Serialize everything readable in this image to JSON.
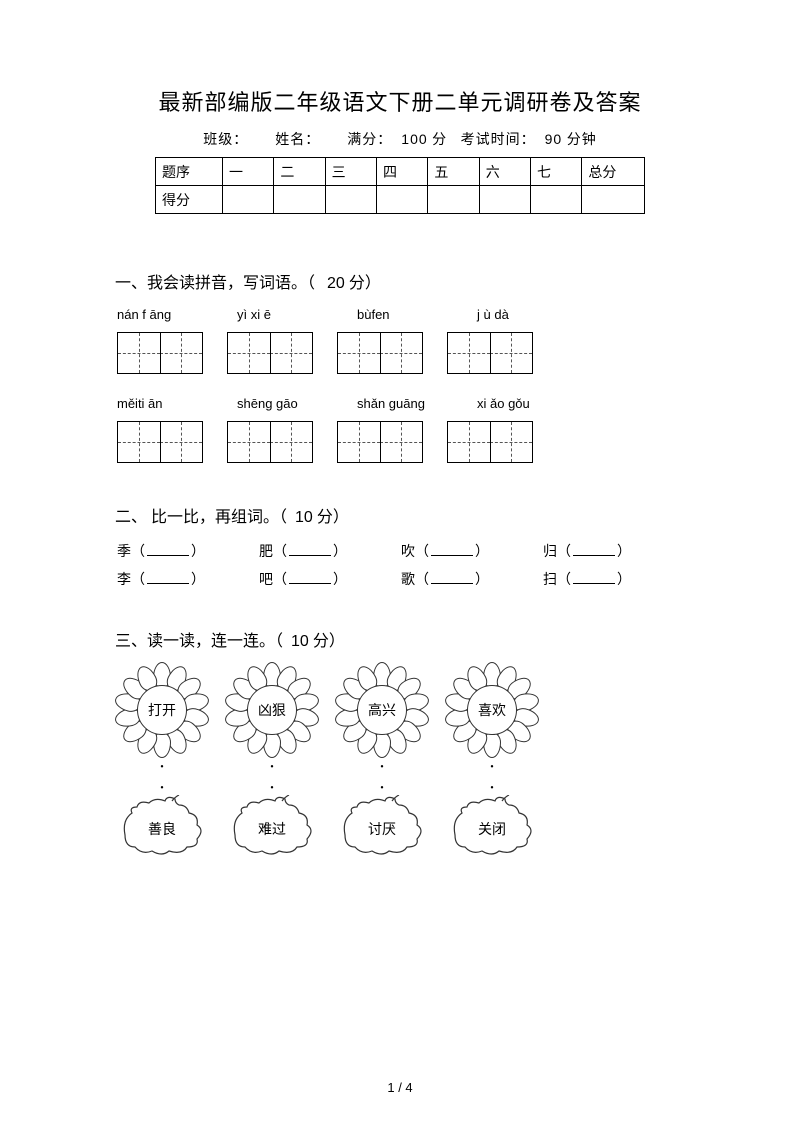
{
  "title": "最新部编版二年级语文下册二单元调研卷及答案",
  "info": {
    "class_label": "班级：",
    "name_label": "姓名：",
    "full_label": "满分：",
    "full_value": "100",
    "full_unit": "分",
    "time_label": "考试时间：",
    "time_value": "90",
    "time_unit": "分钟"
  },
  "score_table": {
    "row1": [
      "题序",
      "一",
      "二",
      "三",
      "四",
      "五",
      "六",
      "七",
      "总分"
    ],
    "row2_label": "得分"
  },
  "section1": {
    "heading": "一、我会读拼音，写词语。（",
    "points": "20",
    "heading_end": "分）",
    "pinyin_row1": [
      "nán f āng",
      "yì xi ē",
      "bùfen",
      "j ù dà"
    ],
    "pinyin_row2": [
      "měiti ān",
      "shēng gāo",
      "shǎn guāng",
      "xi ǎo gǒu"
    ]
  },
  "section2": {
    "heading": "二、 比一比，再组词。（",
    "points": "10",
    "heading_end": "分）",
    "row1": [
      "季",
      "肥",
      "吹",
      "归"
    ],
    "row2": [
      "李",
      "吧",
      "歌",
      "扫"
    ]
  },
  "section3": {
    "heading": "三、读一读，连一连。（",
    "points": "10",
    "heading_end": "分）",
    "flowers": [
      "打开",
      "凶狠",
      "高兴",
      "喜欢"
    ],
    "leaves": [
      "善良",
      "难过",
      "讨厌",
      "关闭"
    ]
  },
  "footer": "1 / 4"
}
